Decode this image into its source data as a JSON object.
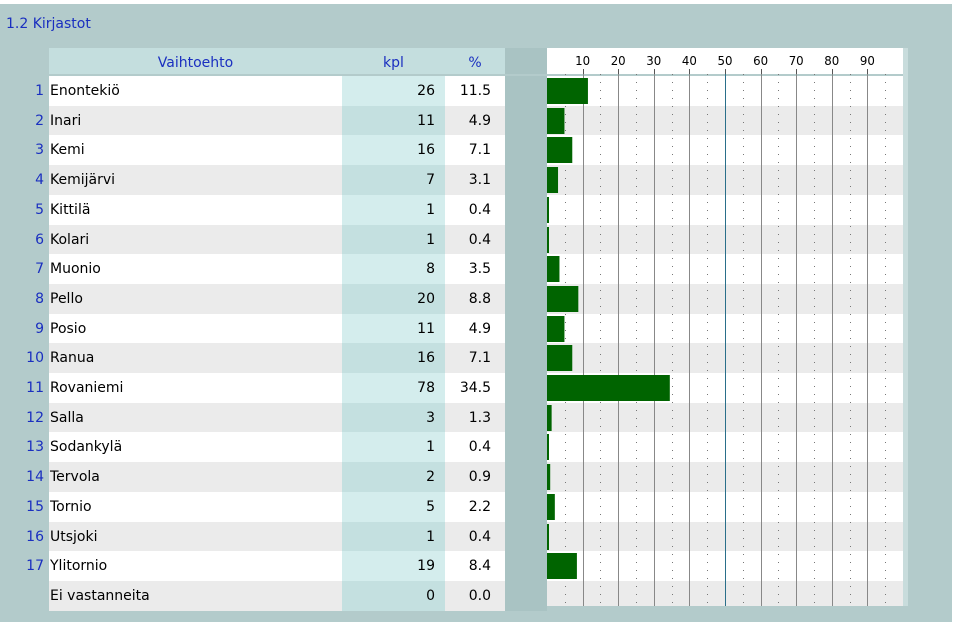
{
  "section_title": "1.2 Kirjastot",
  "columns": {
    "option": "Vaihtoehto",
    "count": "kpl",
    "percent": "%"
  },
  "colors": {
    "bar": "#006400",
    "label_blue": "#1a2fc0",
    "row_light": "#ffffff",
    "row_shade": "#ebebeb",
    "count_cell": "#d4eded",
    "gap_cell": "#a9c3c3"
  },
  "chart_data": {
    "type": "bar",
    "orientation": "horizontal",
    "xlim": [
      0,
      100
    ],
    "ticks": [
      "10",
      "20",
      "30",
      "40",
      "50",
      "60",
      "70",
      "80",
      "90"
    ],
    "rows": [
      {
        "no": "1",
        "label": "Enontekiö",
        "kpl": "26",
        "pct": "11.5",
        "value": 11.5
      },
      {
        "no": "2",
        "label": "Inari",
        "kpl": "11",
        "pct": "4.9",
        "value": 4.9
      },
      {
        "no": "3",
        "label": "Kemi",
        "kpl": "16",
        "pct": "7.1",
        "value": 7.1
      },
      {
        "no": "4",
        "label": "Kemijärvi",
        "kpl": "7",
        "pct": "3.1",
        "value": 3.1
      },
      {
        "no": "5",
        "label": "Kittilä",
        "kpl": "1",
        "pct": "0.4",
        "value": 0.4
      },
      {
        "no": "6",
        "label": "Kolari",
        "kpl": "1",
        "pct": "0.4",
        "value": 0.4
      },
      {
        "no": "7",
        "label": "Muonio",
        "kpl": "8",
        "pct": "3.5",
        "value": 3.5
      },
      {
        "no": "8",
        "label": "Pello",
        "kpl": "20",
        "pct": "8.8",
        "value": 8.8
      },
      {
        "no": "9",
        "label": "Posio",
        "kpl": "11",
        "pct": "4.9",
        "value": 4.9
      },
      {
        "no": "10",
        "label": "Ranua",
        "kpl": "16",
        "pct": "7.1",
        "value": 7.1
      },
      {
        "no": "11",
        "label": "Rovaniemi",
        "kpl": "78",
        "pct": "34.5",
        "value": 34.5
      },
      {
        "no": "12",
        "label": "Salla",
        "kpl": "3",
        "pct": "1.3",
        "value": 1.3
      },
      {
        "no": "13",
        "label": "Sodankylä",
        "kpl": "1",
        "pct": "0.4",
        "value": 0.4
      },
      {
        "no": "14",
        "label": "Tervola",
        "kpl": "2",
        "pct": "0.9",
        "value": 0.9
      },
      {
        "no": "15",
        "label": "Tornio",
        "kpl": "5",
        "pct": "2.2",
        "value": 2.2
      },
      {
        "no": "16",
        "label": "Utsjoki",
        "kpl": "1",
        "pct": "0.4",
        "value": 0.4
      },
      {
        "no": "17",
        "label": "Ylitornio",
        "kpl": "19",
        "pct": "8.4",
        "value": 8.4
      },
      {
        "no": "",
        "label": "Ei vastanneita",
        "kpl": "0",
        "pct": "0.0",
        "value": 0.0
      }
    ]
  }
}
